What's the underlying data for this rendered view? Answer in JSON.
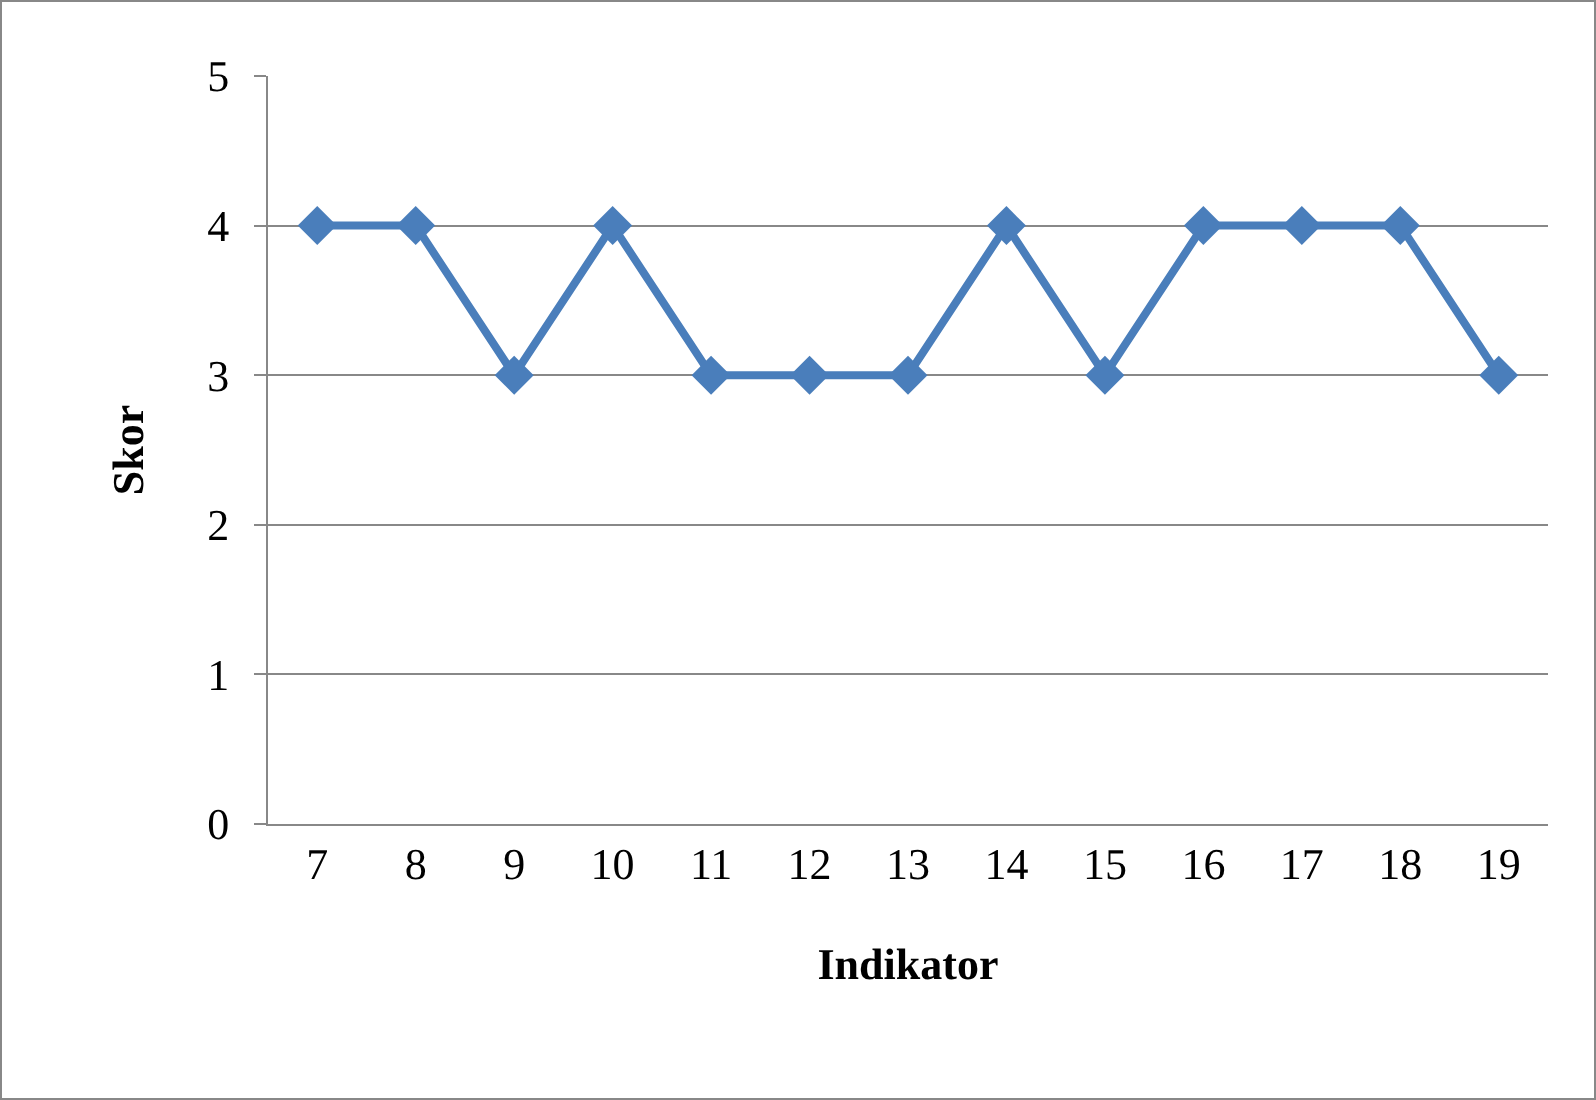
{
  "chart_data": {
    "type": "line",
    "xlabel": "Indikator",
    "ylabel": "Skor",
    "categories": [
      "7",
      "8",
      "9",
      "10",
      "11",
      "12",
      "13",
      "14",
      "15",
      "16",
      "17",
      "18",
      "19"
    ],
    "series": [
      {
        "color": "#4a7ebb",
        "values": [
          4,
          4,
          3,
          4,
          3,
          3,
          3,
          4,
          3,
          4,
          4,
          4,
          3
        ]
      }
    ],
    "ylim": [
      0,
      5
    ],
    "yticks": [
      0,
      1,
      2,
      3,
      4,
      5
    ],
    "grid": "y",
    "legend": false,
    "marker": "diamond",
    "line_style": "solid"
  }
}
